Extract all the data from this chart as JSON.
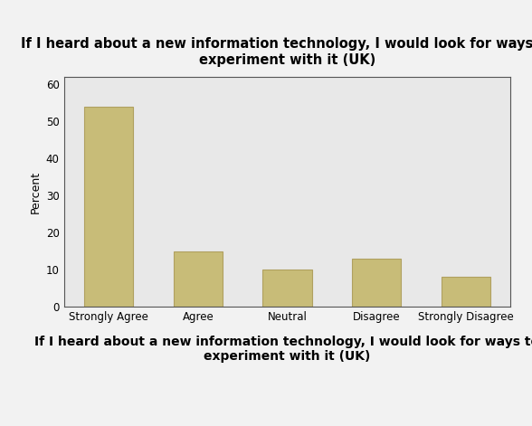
{
  "title": "If I heard about a new information technology, I would look for ways to\nexperiment with it (UK)",
  "xlabel": "If I heard about a new information technology, I would look for ways to\nexperiment with it (UK)",
  "ylabel": "Percent",
  "categories": [
    "Strongly Agree",
    "Agree",
    "Neutral",
    "Disagree",
    "Strongly Disagree"
  ],
  "values": [
    54,
    15,
    10,
    13,
    8
  ],
  "bar_color": "#c8bc78",
  "bar_edgecolor": "#b0a060",
  "ylim": [
    0,
    62
  ],
  "yticks": [
    0,
    10,
    20,
    30,
    40,
    50,
    60
  ],
  "plot_bg_color": "#e8e8e8",
  "fig_bg_color": "#f2f2f2",
  "title_fontsize": 10.5,
  "xlabel_fontsize": 10,
  "ylabel_fontsize": 9,
  "tick_fontsize": 8.5,
  "bar_width": 0.55
}
